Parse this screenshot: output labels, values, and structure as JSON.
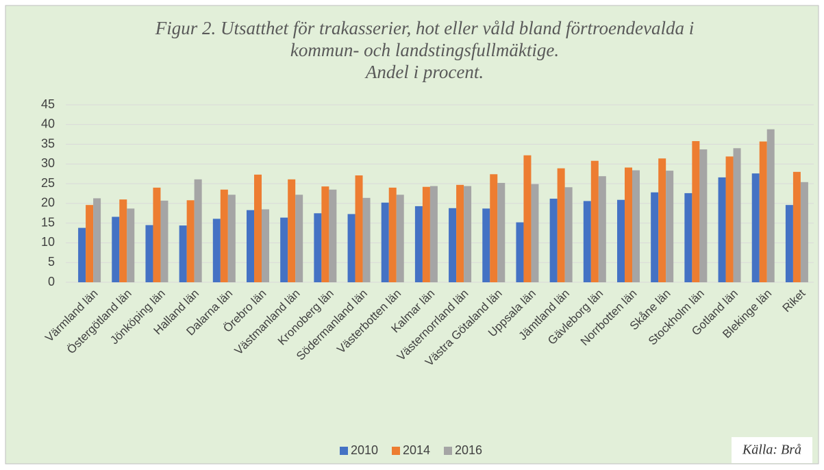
{
  "chart_data": {
    "type": "bar",
    "title": [
      "Figur 2. Utsatthet för trakasserier, hot eller våld bland förtroendevalda i",
      "kommun- och landstingsfullmäktige.",
      "Andel i procent."
    ],
    "source": "Källa: Brå",
    "categories": [
      "Värmland län",
      "Östergötland län",
      "Jönköping län",
      "Halland län",
      "Dalarna län",
      "Örebro län",
      "Västmanland län",
      "Kronoberg län",
      "Södermanland län",
      "Västerbotten län",
      "Kalmar län",
      "Västernorrland län",
      "Västra Götaland län",
      "Uppsala län",
      "Jämtland län",
      "Gävleborg län",
      "Norrbotten län",
      "Skåne län",
      "Stockholm län",
      "Gotland län",
      "Blekinge län",
      "Riket"
    ],
    "series": [
      {
        "name": "2010",
        "color": "#4472c4",
        "values": [
          13.8,
          16.6,
          14.5,
          14.4,
          16.1,
          18.3,
          16.4,
          17.5,
          17.3,
          20.2,
          19.3,
          18.8,
          18.7,
          15.2,
          21.2,
          20.6,
          20.9,
          22.8,
          22.6,
          26.6,
          27.6,
          19.6
        ]
      },
      {
        "name": "2014",
        "color": "#ed7d31",
        "values": [
          19.6,
          21.0,
          24.0,
          20.8,
          23.5,
          27.3,
          26.1,
          24.3,
          27.1,
          24.0,
          24.2,
          24.7,
          27.4,
          32.2,
          28.9,
          30.8,
          29.1,
          31.4,
          35.8,
          31.9,
          35.7,
          28.0
        ]
      },
      {
        "name": "2016",
        "color": "#a5a5a5",
        "values": [
          21.3,
          18.7,
          20.7,
          26.1,
          22.2,
          18.5,
          22.2,
          23.5,
          21.4,
          22.2,
          24.4,
          24.4,
          25.2,
          24.9,
          24.1,
          26.9,
          28.4,
          28.3,
          33.7,
          34.0,
          38.8,
          25.4
        ]
      }
    ],
    "ylim": [
      0,
      45
    ],
    "yticks": [
      0,
      5,
      10,
      15,
      20,
      25,
      30,
      35,
      40,
      45
    ],
    "grid": true,
    "legend": "bottom"
  }
}
